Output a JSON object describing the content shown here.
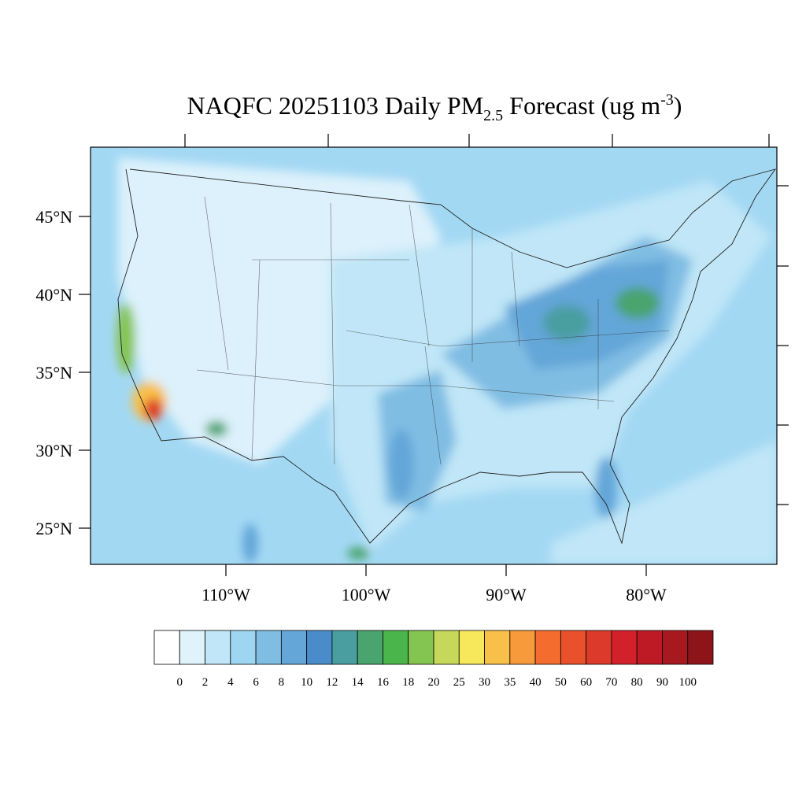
{
  "map": {
    "title": {
      "main": "NAQFC 20251103 Daily PM",
      "sub": "2.5",
      "middle": " Forecast (ug m",
      "sup": "-3",
      "end": ")"
    },
    "lat_labels": [
      "45°N",
      "40°N",
      "35°N",
      "30°N",
      "25°N"
    ],
    "lon_labels": [
      "110°W",
      "100°W",
      "90°W",
      "80°W"
    ],
    "colorbar": {
      "levels": [
        0,
        2,
        4,
        6,
        8,
        10,
        12,
        14,
        16,
        18,
        20,
        25,
        30,
        35,
        40,
        50,
        60,
        70,
        80,
        90,
        100
      ],
      "colors": [
        "#ffffff",
        "#e0f3fb",
        "#c0e6f7",
        "#9ed6f2",
        "#80bde3",
        "#64a6d8",
        "#4a8bc9",
        "#4a9ea0",
        "#4aa46e",
        "#4ab54a",
        "#84c450",
        "#c5d85a",
        "#f7e75a",
        "#f8c048",
        "#f79a3c",
        "#f46d2e",
        "#e9502c",
        "#dc3a2a",
        "#d3212c",
        "#be1a26",
        "#a8181f",
        "#8d1519"
      ]
    }
  }
}
